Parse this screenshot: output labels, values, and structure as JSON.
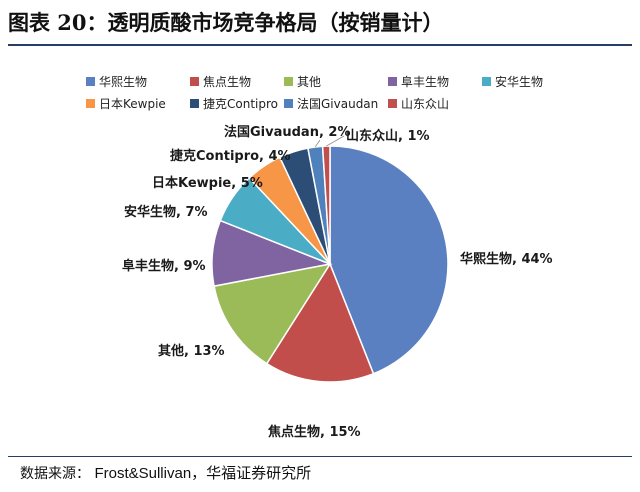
{
  "header": {
    "title": "图表 20：透明质酸市场竞争格局（按销量计）"
  },
  "footer": {
    "source_label": "数据来源：",
    "source_text": "Frost&Sullivan，华福证券研究所"
  },
  "chart_data": {
    "type": "pie",
    "legend_position": "top",
    "categories": [
      "华熙生物",
      "焦点生物",
      "其他",
      "阜丰生物",
      "安华生物",
      "日本Kewpie",
      "捷克Contipro",
      "法国Givaudan",
      "山东众山"
    ],
    "values": [
      44,
      15,
      13,
      9,
      7,
      5,
      4,
      2,
      1
    ],
    "data_labels": [
      "华熙生物, 44%",
      "焦点生物, 15%",
      "其他, 13%",
      "阜丰生物, 9%",
      "安华生物, 7%",
      "日本Kewpie, 5%",
      "捷克Contipro, 4%",
      "法国Givaudan, 2%",
      "山东众山, 1%"
    ],
    "colors": [
      "#5b80c2",
      "#c14e4b",
      "#9bbb59",
      "#8064a2",
      "#4bacc6",
      "#f79646",
      "#2c4d75",
      "#4f81bd",
      "#c0504d"
    ]
  }
}
